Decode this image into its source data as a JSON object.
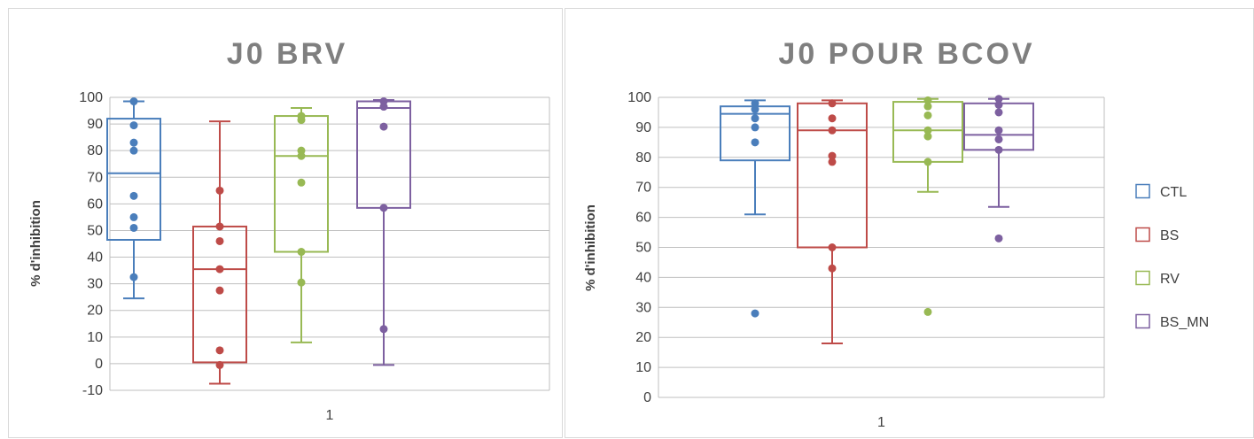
{
  "chart_data": [
    {
      "type": "boxplot",
      "title": "J0 BRV",
      "ylabel": "% d'inhibition",
      "xlabel": "",
      "x_tick": "1",
      "ylim": [
        -10,
        100
      ],
      "y_ticks": [
        -10,
        0,
        10,
        20,
        30,
        40,
        50,
        60,
        70,
        80,
        90,
        100
      ],
      "grid": true,
      "legend": null,
      "series": [
        {
          "name": "CTL",
          "color": "#4a7ebb",
          "min": 24.5,
          "q1": 46.5,
          "median": 71.5,
          "q3": 92,
          "max": 98.5,
          "points": [
            98.5,
            89.5,
            83,
            80,
            63,
            55,
            51,
            32.5
          ]
        },
        {
          "name": "BS",
          "color": "#be4b48",
          "min": -7.5,
          "q1": 0.5,
          "median": 35.5,
          "q3": 51.5,
          "max": 91,
          "points": [
            65,
            51.5,
            46,
            35.5,
            27.5,
            5,
            -0.5
          ]
        },
        {
          "name": "RV",
          "color": "#98b954",
          "min": 8,
          "q1": 42,
          "median": 78,
          "q3": 93,
          "max": 96,
          "points": [
            93,
            91.5,
            80,
            78,
            68,
            42,
            30.5
          ]
        },
        {
          "name": "BS_MN",
          "color": "#7d60a0",
          "min": -0.5,
          "q1": 58.5,
          "median": 96,
          "q3": 98.5,
          "max": 99,
          "points": [
            98.5,
            96.5,
            89,
            58.5,
            13
          ]
        }
      ]
    },
    {
      "type": "boxplot",
      "title": "J0 POUR BCOV",
      "ylabel": "% d'inhibition",
      "xlabel": "",
      "x_tick": "1",
      "ylim": [
        0,
        100
      ],
      "y_ticks": [
        0,
        10,
        20,
        30,
        40,
        50,
        60,
        70,
        80,
        90,
        100
      ],
      "grid": true,
      "legend": "right",
      "series": [
        {
          "name": "CTL",
          "color": "#4a7ebb",
          "min": 61,
          "q1": 79,
          "median": 94.5,
          "q3": 97,
          "max": 99,
          "points": [
            98,
            96,
            93,
            90,
            85,
            28
          ]
        },
        {
          "name": "BS",
          "color": "#be4b48",
          "min": 18,
          "q1": 50,
          "median": 89,
          "q3": 98,
          "max": 99,
          "points": [
            98,
            93,
            89,
            80.5,
            78.5,
            50,
            43
          ]
        },
        {
          "name": "RV",
          "color": "#98b954",
          "min": 68.5,
          "q1": 78.5,
          "median": 89,
          "q3": 98.5,
          "max": 99.5,
          "points": [
            99,
            97,
            94,
            89,
            87,
            78.5,
            28.5
          ]
        },
        {
          "name": "BS_MN",
          "color": "#7d60a0",
          "min": 63.5,
          "q1": 82.5,
          "median": 87.5,
          "q3": 98,
          "max": 99.5,
          "points": [
            99.5,
            97.5,
            95,
            89,
            86,
            82.5,
            53
          ]
        }
      ]
    }
  ]
}
